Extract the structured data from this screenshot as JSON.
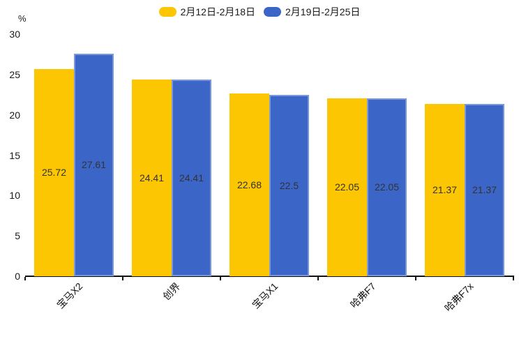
{
  "chart_data": {
    "type": "bar",
    "title": "",
    "unit": "%",
    "categories": [
      "宝马X2",
      "创界",
      "宝马X1",
      "哈弗F7",
      "哈弗F7x"
    ],
    "series": [
      {
        "name": "2月12日-2月18日",
        "color": "#FCC602",
        "values": [
          25.72,
          24.41,
          22.68,
          22.05,
          21.37
        ]
      },
      {
        "name": "2月19日-2月25日",
        "color": "#3B66C8",
        "values": [
          27.61,
          24.41,
          22.5,
          22.05,
          21.37
        ]
      }
    ],
    "ylim": [
      0,
      30
    ],
    "ytick_step": 5,
    "yticks": [
      0,
      5,
      10,
      15,
      20,
      25,
      30
    ],
    "legend_position": "top",
    "grid": false,
    "value_label_position": "inside-center",
    "value_label_color": "#333333",
    "axis_color": "#111111",
    "category_label_rotation_deg": 45
  }
}
